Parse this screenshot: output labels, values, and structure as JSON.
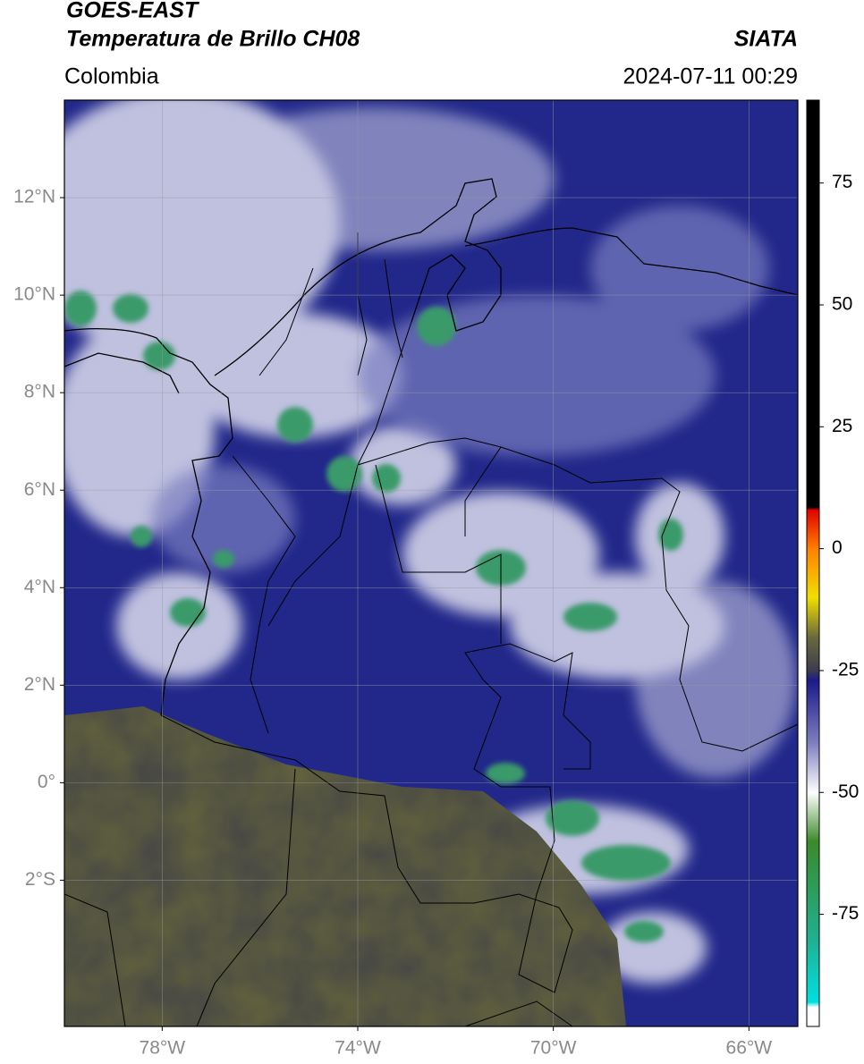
{
  "header": {
    "title_line1": "GOES-EAST",
    "title_line2": "Temperatura de Brillo CH08",
    "source": "SIATA",
    "region": "Colombia",
    "timestamp": "2024-07-11 00:29"
  },
  "map": {
    "xlim": [
      -80,
      -65
    ],
    "ylim": [
      -5,
      14
    ],
    "xticks": [
      {
        "value": -78,
        "label": "78°W"
      },
      {
        "value": -74,
        "label": "74°W"
      },
      {
        "value": -70,
        "label": "70°W"
      },
      {
        "value": -66,
        "label": "66°W"
      }
    ],
    "yticks": [
      {
        "value": 12,
        "label": "12°N"
      },
      {
        "value": 10,
        "label": "10°N"
      },
      {
        "value": 8,
        "label": "8°N"
      },
      {
        "value": 6,
        "label": "6°N"
      },
      {
        "value": 4,
        "label": "4°N"
      },
      {
        "value": 2,
        "label": "2°N"
      },
      {
        "value": 0,
        "label": "0°"
      },
      {
        "value": -2,
        "label": "2°S"
      }
    ],
    "grid": true
  },
  "colorbar": {
    "clim": [
      -98,
      92
    ],
    "ticks": [
      75,
      50,
      25,
      0,
      -25,
      -50,
      -75
    ],
    "colormap": [
      {
        "value": 92,
        "color": "#000000"
      },
      {
        "value": 8.5,
        "color": "#000000"
      },
      {
        "value": 8,
        "color": "#e00000"
      },
      {
        "value": 0,
        "color": "#ff8000"
      },
      {
        "value": -10,
        "color": "#f0e000"
      },
      {
        "value": -18,
        "color": "#6b6a3c"
      },
      {
        "value": -25,
        "color": "#3c3c50"
      },
      {
        "value": -27,
        "color": "#1a1a8a"
      },
      {
        "value": -40,
        "color": "#8080c0"
      },
      {
        "value": -50,
        "color": "#ffffff"
      },
      {
        "value": -60,
        "color": "#3a8a2a"
      },
      {
        "value": -80,
        "color": "#20b090"
      },
      {
        "value": -93,
        "color": "#00e0e0"
      },
      {
        "value": -94,
        "color": "#ffffff"
      },
      {
        "value": -98,
        "color": "#ffffff"
      }
    ]
  }
}
